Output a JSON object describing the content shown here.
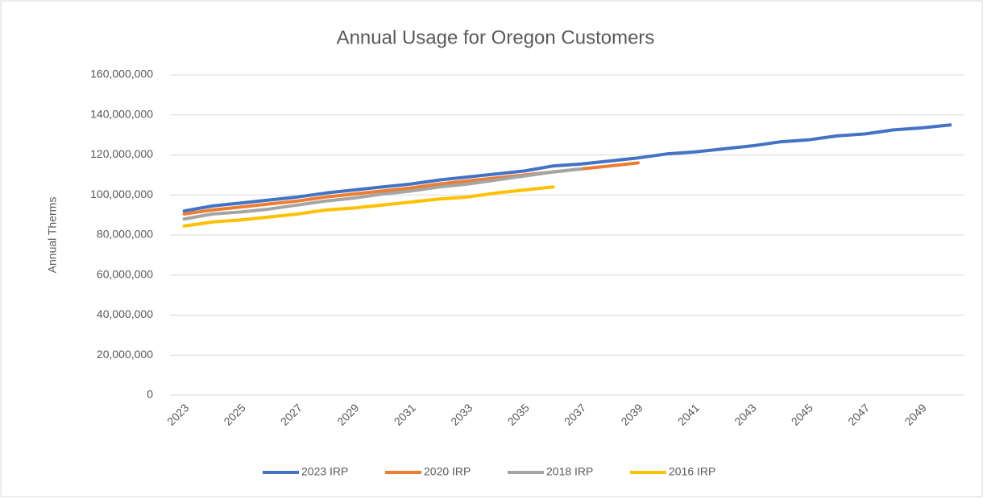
{
  "chart_data": {
    "type": "line",
    "title": "Annual Usage for Oregon Customers",
    "y_label": "Annual Therms",
    "categories": [
      "2023",
      null,
      "2025",
      null,
      "2027",
      null,
      "2029",
      null,
      "2031",
      null,
      "2033",
      null,
      "2035",
      null,
      "2037",
      null,
      "2039",
      null,
      "2041",
      null,
      "2043",
      null,
      "2045",
      null,
      "2047",
      null,
      "2049",
      null
    ],
    "series": [
      {
        "name": "2023 IRP",
        "color": "#4472c4",
        "values": [
          92000000,
          94500000,
          96000000,
          97500000,
          99000000,
          101000000,
          102500000,
          104000000,
          105500000,
          107500000,
          109000000,
          110500000,
          112000000,
          114500000,
          115500000,
          117000000,
          118500000,
          120500000,
          121500000,
          123000000,
          124500000,
          126500000,
          127500000,
          129500000,
          130500000,
          132500000,
          133500000,
          135000000
        ]
      },
      {
        "name": "2020 IRP",
        "color": "#ed7d31",
        "values": [
          90500000,
          92500000,
          94000000,
          95500000,
          97000000,
          99000000,
          100500000,
          102000000,
          103500000,
          105500000,
          107000000,
          108500000,
          110000000,
          111500000,
          113000000,
          114500000,
          116000000,
          null,
          null,
          null,
          null,
          null,
          null,
          null,
          null,
          null,
          null,
          null
        ]
      },
      {
        "name": "2018 IRP",
        "color": "#a5a5a5",
        "values": [
          88000000,
          90500000,
          91500000,
          93000000,
          95000000,
          97000000,
          98500000,
          100500000,
          102000000,
          104000000,
          105500000,
          107500000,
          109500000,
          111500000,
          113000000,
          null,
          null,
          null,
          null,
          null,
          null,
          null,
          null,
          null,
          null,
          null,
          null,
          null
        ]
      },
      {
        "name": "2016 IRP",
        "color": "#ffc000",
        "values": [
          84500000,
          86500000,
          87500000,
          89000000,
          90500000,
          92500000,
          93500000,
          95000000,
          96500000,
          98000000,
          99000000,
          101000000,
          102500000,
          104000000,
          null,
          null,
          null,
          null,
          null,
          null,
          null,
          null,
          null,
          null,
          null,
          null,
          null,
          null
        ]
      }
    ],
    "ylim": [
      0,
      160000000
    ],
    "yticks": [
      0,
      {
        "value": 20000000,
        "label": "20,000,000"
      },
      {
        "value": 40000000,
        "label": "40,000,000"
      },
      {
        "value": 60000000,
        "label": "60,000,000"
      },
      {
        "value": 80000000,
        "label": "80,000,000"
      },
      {
        "value": 100000000,
        "label": "100,000,000"
      },
      {
        "value": 120000000,
        "label": "120,000,000"
      },
      {
        "value": 140000000,
        "label": "140,000,000"
      },
      {
        "value": 160000000,
        "label": "160,000,000"
      }
    ],
    "grid": true,
    "legend": "bottom"
  }
}
